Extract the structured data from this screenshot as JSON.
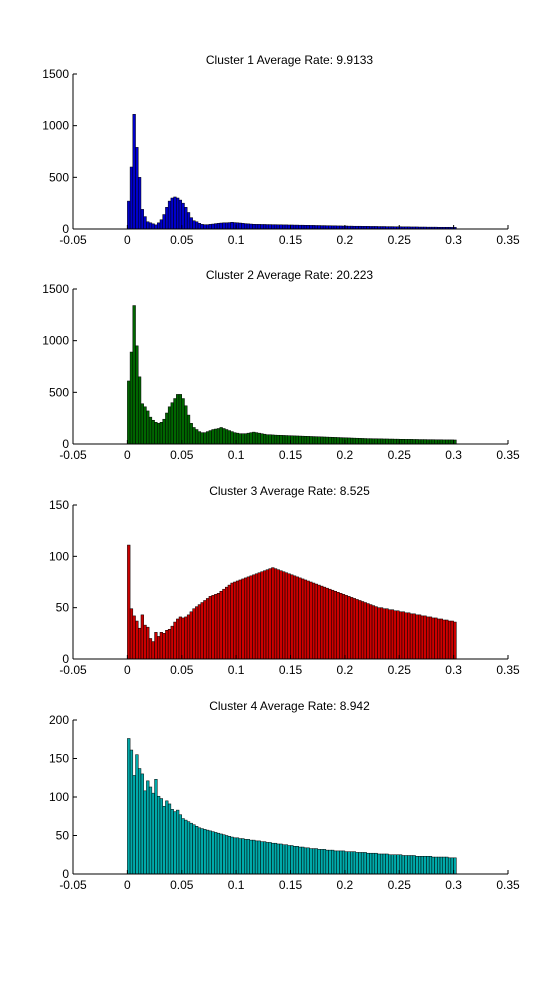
{
  "chart_data": [
    {
      "type": "bar",
      "title": "Cluster 1    Average Rate: 9.9133",
      "xlabel": "",
      "ylabel": "",
      "xlim": [
        -0.05,
        0.35
      ],
      "ylim": [
        0,
        1500
      ],
      "x_ticks": [
        "-0.05",
        "0",
        "0.05",
        "0.1",
        "0.15",
        "0.2",
        "0.25",
        "0.3",
        "0.35"
      ],
      "y_ticks": [
        "0",
        "500",
        "1000",
        "1500"
      ],
      "color": "#0000cc",
      "bin_width": 0.0025,
      "x_start": 0,
      "values": [
        270,
        600,
        1110,
        790,
        500,
        190,
        120,
        70,
        60,
        50,
        40,
        60,
        90,
        140,
        210,
        270,
        300,
        310,
        300,
        280,
        250,
        210,
        160,
        110,
        80,
        70,
        55,
        45,
        42,
        42,
        45,
        48,
        52,
        55,
        58,
        60,
        60,
        62,
        65,
        62,
        60,
        58,
        55,
        52,
        50,
        48,
        46,
        45,
        45,
        44,
        44,
        43,
        43,
        42,
        42,
        41,
        41,
        40,
        40,
        39,
        39,
        38,
        38,
        37,
        37,
        36,
        36,
        35,
        35,
        34,
        34,
        33,
        33,
        32,
        32,
        31,
        31,
        30,
        30,
        29,
        29,
        28,
        28,
        27,
        27,
        27,
        26,
        26,
        26,
        25,
        25,
        25,
        24,
        24,
        24,
        23,
        23,
        23,
        22,
        22,
        22,
        21,
        21,
        21,
        20,
        20,
        20,
        19,
        19,
        19,
        18,
        18,
        18,
        18,
        17,
        17,
        17,
        17,
        17,
        16,
        16
      ]
    },
    {
      "type": "bar",
      "title": "Cluster 2    Average Rate: 20.223",
      "xlabel": "",
      "ylabel": "",
      "xlim": [
        -0.05,
        0.35
      ],
      "ylim": [
        0,
        1500
      ],
      "x_ticks": [
        "-0.05",
        "0",
        "0.05",
        "0.1",
        "0.15",
        "0.2",
        "0.25",
        "0.3",
        "0.35"
      ],
      "y_ticks": [
        "0",
        "500",
        "1000",
        "1500"
      ],
      "color": "#006600",
      "bin_width": 0.0025,
      "x_start": 0,
      "values": [
        610,
        890,
        1340,
        950,
        650,
        390,
        360,
        320,
        260,
        230,
        210,
        200,
        210,
        240,
        300,
        360,
        400,
        440,
        480,
        480,
        440,
        370,
        280,
        200,
        160,
        140,
        120,
        110,
        110,
        120,
        130,
        140,
        145,
        150,
        160,
        150,
        140,
        130,
        120,
        110,
        105,
        100,
        100,
        100,
        105,
        110,
        115,
        110,
        105,
        100,
        95,
        90,
        90,
        88,
        86,
        85,
        84,
        83,
        82,
        81,
        80,
        79,
        78,
        77,
        76,
        75,
        74,
        73,
        72,
        71,
        70,
        69,
        68,
        67,
        66,
        65,
        64,
        63,
        62,
        61,
        60,
        59,
        58,
        57,
        56,
        55,
        54,
        53,
        52,
        52,
        51,
        51,
        50,
        50,
        49,
        49,
        48,
        48,
        47,
        47,
        46,
        46,
        45,
        45,
        45,
        44,
        44,
        43,
        43,
        43,
        42,
        42,
        42,
        41,
        41,
        41,
        40,
        40,
        40,
        40,
        39
      ]
    },
    {
      "type": "bar",
      "title": "Cluster 3    Average Rate: 8.525",
      "xlabel": "",
      "ylabel": "",
      "xlim": [
        -0.05,
        0.35
      ],
      "ylim": [
        0,
        150
      ],
      "x_ticks": [
        "-0.05",
        "0",
        "0.05",
        "0.1",
        "0.15",
        "0.2",
        "0.25",
        "0.3",
        "0.35"
      ],
      "y_ticks": [
        "0",
        "50",
        "100",
        "150"
      ],
      "color": "#cc0000",
      "bin_width": 0.0025,
      "x_start": 0,
      "values": [
        111,
        49,
        42,
        37,
        30,
        43,
        33,
        31,
        20,
        17,
        26,
        22,
        26,
        25,
        28,
        29,
        32,
        36,
        39,
        41,
        40,
        41,
        43,
        46,
        49,
        51,
        53,
        55,
        57,
        59,
        61,
        62,
        63,
        64,
        66,
        68,
        70,
        72,
        74,
        75,
        76,
        77,
        78,
        79,
        80,
        81,
        82,
        83,
        84,
        85,
        86,
        87,
        88,
        89,
        88,
        87,
        86,
        85,
        84,
        83,
        82,
        81,
        80,
        79,
        78,
        77,
        76,
        75,
        74,
        73,
        72,
        71,
        70,
        69,
        68,
        67,
        66,
        65,
        64,
        63,
        62,
        61,
        60,
        59,
        58,
        57,
        56,
        55,
        54,
        53,
        52,
        51,
        50,
        50,
        49,
        49,
        48,
        48,
        47,
        47,
        46,
        46,
        45,
        45,
        44,
        44,
        43,
        43,
        42,
        42,
        41,
        41,
        40,
        40,
        39,
        39,
        38,
        38,
        37,
        37,
        36
      ]
    },
    {
      "type": "bar",
      "title": "Cluster 4    Average Rate: 8.942",
      "xlabel": "",
      "ylabel": "",
      "xlim": [
        -0.05,
        0.35
      ],
      "ylim": [
        0,
        200
      ],
      "x_ticks": [
        "-0.05",
        "0",
        "0.05",
        "0.1",
        "0.15",
        "0.2",
        "0.25",
        "0.3",
        "0.35"
      ],
      "y_ticks": [
        "0",
        "50",
        "100",
        "150",
        "200"
      ],
      "color": "#00aaaa",
      "bin_width": 0.0025,
      "x_start": 0,
      "values": [
        176,
        161,
        128,
        155,
        137,
        130,
        108,
        121,
        113,
        105,
        123,
        101,
        98,
        88,
        95,
        91,
        84,
        81,
        83,
        77,
        72,
        70,
        68,
        66,
        64,
        62,
        60,
        59,
        58,
        57,
        56,
        55,
        54,
        53,
        52,
        51,
        50,
        49,
        48,
        47,
        47,
        46,
        46,
        45,
        45,
        44,
        44,
        43,
        43,
        42,
        42,
        41,
        41,
        40,
        40,
        39,
        39,
        38,
        38,
        37,
        37,
        36,
        36,
        35,
        35,
        34,
        34,
        33,
        33,
        33,
        32,
        32,
        32,
        31,
        31,
        31,
        30,
        30,
        30,
        30,
        29,
        29,
        29,
        29,
        28,
        28,
        28,
        28,
        27,
        27,
        27,
        27,
        26,
        26,
        26,
        26,
        25,
        25,
        25,
        25,
        25,
        24,
        24,
        24,
        24,
        24,
        23,
        23,
        23,
        23,
        23,
        23,
        22,
        22,
        22,
        22,
        22,
        22,
        21,
        21,
        21
      ]
    }
  ]
}
